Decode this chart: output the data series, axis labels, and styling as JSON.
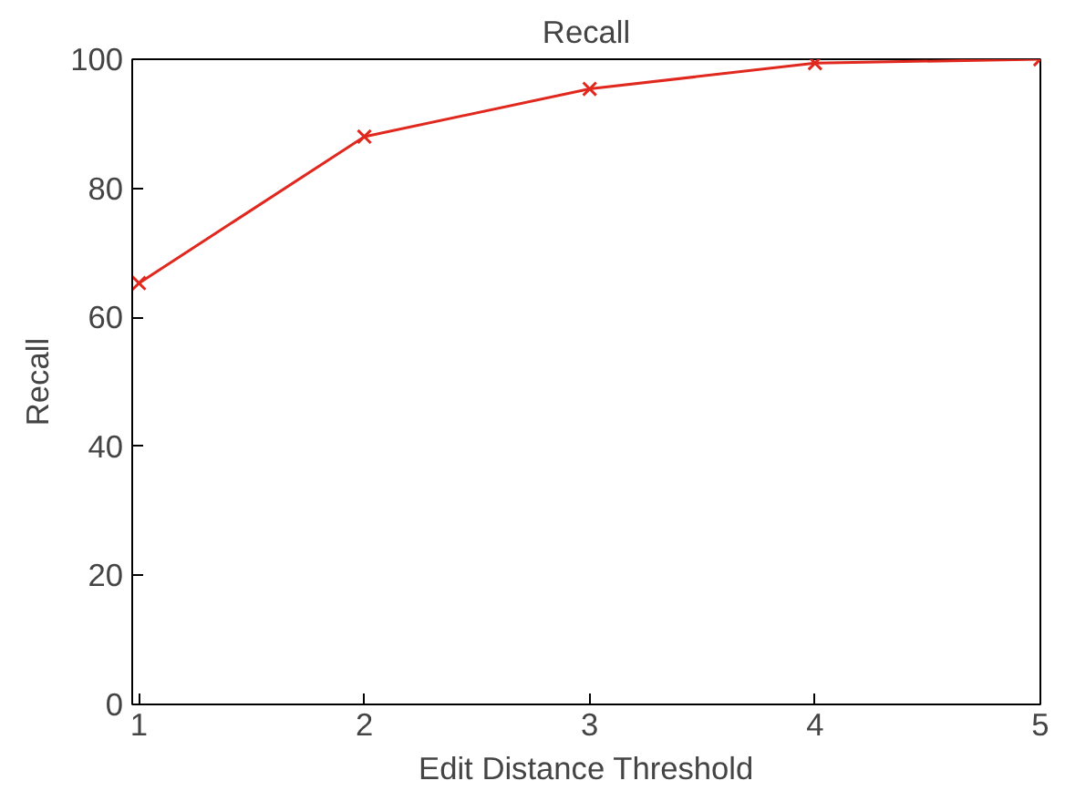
{
  "chart_data": {
    "type": "line",
    "title": "Recall",
    "xlabel": "Edit Distance Threshold",
    "ylabel": "Recall",
    "x": [
      1,
      2,
      3,
      4,
      5
    ],
    "series": [
      {
        "color": "#e0281e",
        "values": [
          65.3,
          88.0,
          95.4,
          99.4,
          100
        ]
      }
    ],
    "xlim": [
      0.97,
      5
    ],
    "ylim": [
      0,
      100
    ],
    "xticks": [
      1,
      2,
      3,
      4,
      5
    ],
    "yticks": [
      0,
      20,
      40,
      60,
      80,
      100
    ],
    "grid": false,
    "marker": "cross",
    "line_style": "solid"
  }
}
